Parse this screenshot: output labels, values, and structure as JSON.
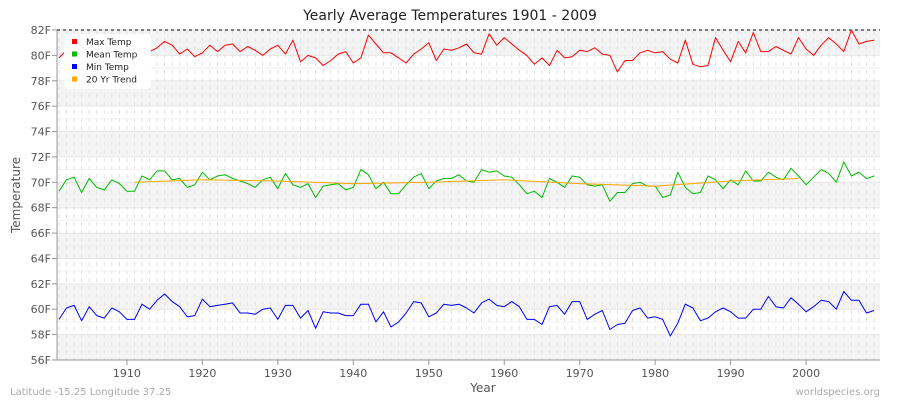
{
  "chart_data": {
    "type": "line",
    "title": "Yearly Average Temperatures 1901 - 2009",
    "xlabel": "Year",
    "ylabel": "Temperature",
    "xlim": [
      1901,
      2009
    ],
    "ylim": [
      56,
      82
    ],
    "x_ticks": [
      1910,
      1920,
      1930,
      1940,
      1950,
      1960,
      1970,
      1980,
      1990,
      2000
    ],
    "y_ticks": [
      "56F",
      "58F",
      "60F",
      "62F",
      "64F",
      "66F",
      "68F",
      "70F",
      "72F",
      "74F",
      "76F",
      "78F",
      "80F",
      "82F"
    ],
    "grid": true,
    "legend_position": "top-left",
    "series": [
      {
        "name": "Max Temp",
        "color": "#ff0000",
        "start_year": 1901,
        "values": [
          79.8,
          80.4,
          80.1,
          80.8,
          80.0,
          80.5,
          80.9,
          80.2,
          80.6,
          80.3,
          80.1,
          80.6,
          80.3,
          80.6,
          81.1,
          80.8,
          80.1,
          80.5,
          79.9,
          80.2,
          80.8,
          80.3,
          80.8,
          80.9,
          80.3,
          80.7,
          80.4,
          80.0,
          80.5,
          80.8,
          80.1,
          81.2,
          79.5,
          80.0,
          79.8,
          79.2,
          79.6,
          80.1,
          80.3,
          79.4,
          79.8,
          81.6,
          80.9,
          80.2,
          80.2,
          79.8,
          79.4,
          80.1,
          80.5,
          81.0,
          79.6,
          80.5,
          80.4,
          80.6,
          80.9,
          80.2,
          80.1,
          81.7,
          80.8,
          81.4,
          80.9,
          80.4,
          80.0,
          79.3,
          79.8,
          79.2,
          80.4,
          79.8,
          79.9,
          80.4,
          80.3,
          80.6,
          80.1,
          80.0,
          78.7,
          79.6,
          79.6,
          80.2,
          80.4,
          80.2,
          80.3,
          79.7,
          79.4,
          81.2,
          79.3,
          79.1,
          79.2,
          81.4,
          80.4,
          79.5,
          81.1,
          80.2,
          81.8,
          80.3,
          80.3,
          80.7,
          80.4,
          80.1,
          81.4,
          80.5,
          80.0,
          80.8,
          81.4,
          80.9,
          80.3,
          82.0,
          80.9,
          81.1,
          81.2
        ]
      },
      {
        "name": "Mean Temp",
        "color": "#00bb00",
        "start_year": 1901,
        "values": [
          69.3,
          70.2,
          70.4,
          69.2,
          70.3,
          69.6,
          69.4,
          70.2,
          69.9,
          69.3,
          69.3,
          70.5,
          70.2,
          70.9,
          70.9,
          70.2,
          70.3,
          69.6,
          69.8,
          70.8,
          70.2,
          70.5,
          70.6,
          70.3,
          70.1,
          69.9,
          69.6,
          70.2,
          70.4,
          69.5,
          70.7,
          69.8,
          69.6,
          69.9,
          68.8,
          69.7,
          69.8,
          69.9,
          69.4,
          69.6,
          71.0,
          70.6,
          69.5,
          70.0,
          69.1,
          69.1,
          69.8,
          70.4,
          70.7,
          69.5,
          70.1,
          70.3,
          70.3,
          70.6,
          70.1,
          70.0,
          71.0,
          70.8,
          70.9,
          70.5,
          70.4,
          69.8,
          69.1,
          69.3,
          68.8,
          70.3,
          70.0,
          69.6,
          70.5,
          70.4,
          69.8,
          69.7,
          69.8,
          68.5,
          69.2,
          69.2,
          69.9,
          70.0,
          69.7,
          69.7,
          68.8,
          69.0,
          70.8,
          69.6,
          69.1,
          69.2,
          70.5,
          70.2,
          69.5,
          70.2,
          69.8,
          70.9,
          70.1,
          70.1,
          70.8,
          70.4,
          70.2,
          71.1,
          70.5,
          69.8,
          70.4,
          71.0,
          70.7,
          70.0,
          71.6,
          70.5,
          70.8,
          70.3,
          70.5
        ]
      },
      {
        "name": "Min Temp",
        "color": "#0000ff",
        "start_year": 1901,
        "values": [
          59.2,
          60.1,
          60.3,
          59.1,
          60.2,
          59.5,
          59.3,
          60.1,
          59.8,
          59.2,
          59.2,
          60.4,
          60.0,
          60.7,
          61.2,
          60.6,
          60.2,
          59.4,
          59.5,
          60.8,
          60.2,
          60.3,
          60.4,
          60.5,
          59.7,
          59.7,
          59.6,
          60.0,
          60.1,
          59.2,
          60.3,
          60.3,
          59.3,
          59.9,
          58.5,
          59.8,
          59.7,
          59.7,
          59.5,
          59.5,
          60.4,
          60.4,
          59.0,
          59.8,
          58.6,
          59.0,
          59.7,
          60.6,
          60.5,
          59.4,
          59.7,
          60.4,
          60.3,
          60.4,
          60.1,
          59.7,
          60.5,
          60.8,
          60.3,
          60.2,
          60.6,
          60.2,
          59.2,
          59.2,
          58.8,
          60.2,
          60.3,
          59.6,
          60.6,
          60.6,
          59.2,
          59.6,
          59.9,
          58.4,
          58.8,
          58.9,
          59.9,
          60.1,
          59.3,
          59.4,
          59.2,
          57.9,
          58.9,
          60.4,
          60.1,
          59.1,
          59.3,
          59.8,
          60.1,
          59.8,
          59.3,
          59.3,
          60.0,
          60.0,
          61.0,
          60.2,
          60.1,
          60.9,
          60.4,
          59.8,
          60.2,
          60.7,
          60.6,
          60.0,
          61.4,
          60.7,
          60.7,
          59.7,
          59.9
        ]
      },
      {
        "name": "20 Yr Trend",
        "color": "#ffa500",
        "x": [
          1911,
          1920,
          1930,
          1940,
          1950,
          1960,
          1970,
          1980,
          1990,
          1999
        ],
        "values": [
          70.0,
          70.2,
          70.1,
          69.9,
          70.0,
          70.2,
          69.9,
          69.7,
          70.1,
          70.3
        ]
      }
    ]
  },
  "footer": {
    "location": "Latitude -15.25 Longitude 37.25",
    "source": "worldspecies.org"
  }
}
